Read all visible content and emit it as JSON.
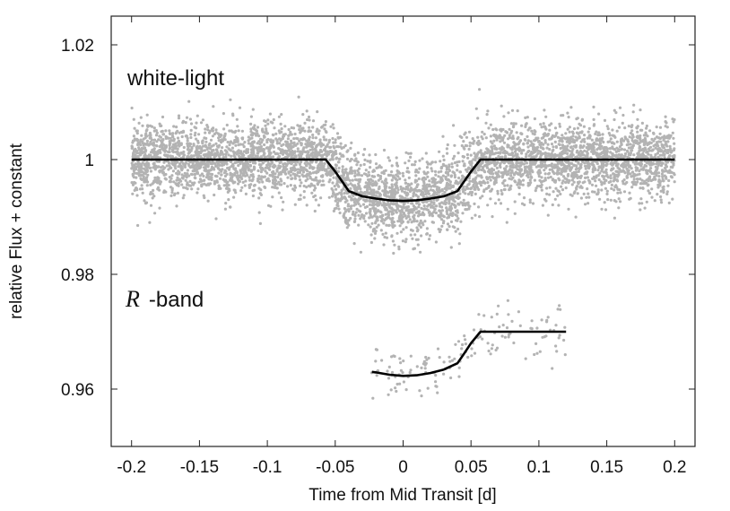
{
  "chart_data": {
    "type": "scatter",
    "xlabel": "Time from Mid Transit [d]",
    "ylabel": "relative Flux + constant",
    "xlim": [
      -0.215,
      0.215
    ],
    "ylim": [
      0.95,
      1.025
    ],
    "xticks": [
      -0.2,
      -0.15,
      -0.1,
      -0.05,
      0,
      0.05,
      0.1,
      0.15,
      0.2
    ],
    "xtick_labels": [
      "-0.2",
      "-0.15",
      "-0.1",
      "-0.05",
      "0",
      "0.05",
      "0.1",
      "0.15",
      "0.2"
    ],
    "yticks": [
      1.02,
      1.0,
      0.98,
      0.96
    ],
    "ytick_labels": [
      "1.02",
      "1",
      "0.98",
      "0.96"
    ],
    "grid": false,
    "annotations": [
      {
        "text": "white-light",
        "x": -0.202,
        "y": 1.0155
      },
      {
        "text_italic": "R",
        "text": "-band",
        "x": -0.202,
        "y": 0.976
      }
    ],
    "series": [
      {
        "kind": "scatter",
        "color": "#b3b3b3",
        "x_range": [
          -0.2,
          0.2
        ],
        "n_points": 5200,
        "baseline": 1.0,
        "depth": 0.0072,
        "scatter_sd": 0.0033,
        "cadence": "dense"
      },
      {
        "kind": "scatter",
        "color": "#b3b3b3",
        "x_range": [
          -0.025,
          0.12
        ],
        "n_points": 150,
        "baseline": 0.97,
        "depth": 0.0077,
        "scatter_sd": 0.0022,
        "cadence": "sparse"
      },
      {
        "kind": "line",
        "color": "#000000",
        "x": [
          -0.2,
          -0.057,
          -0.05,
          -0.045,
          -0.04,
          -0.03,
          -0.02,
          -0.01,
          0.0,
          0.01,
          0.02,
          0.03,
          0.04,
          0.045,
          0.05,
          0.057,
          0.2
        ],
        "y": [
          1.0,
          1.0,
          0.9979,
          0.9962,
          0.9945,
          0.9936,
          0.9932,
          0.9929,
          0.9928,
          0.9929,
          0.9932,
          0.9936,
          0.9945,
          0.9962,
          0.9979,
          1.0,
          1.0
        ]
      },
      {
        "kind": "line",
        "color": "#000000",
        "x": [
          -0.023,
          -0.02,
          -0.01,
          0.0,
          0.01,
          0.02,
          0.03,
          0.04,
          0.045,
          0.05,
          0.057,
          0.12
        ],
        "y": [
          0.963,
          0.9629,
          0.9625,
          0.9623,
          0.9624,
          0.9628,
          0.9634,
          0.9645,
          0.9662,
          0.968,
          0.97,
          0.97
        ]
      }
    ]
  }
}
